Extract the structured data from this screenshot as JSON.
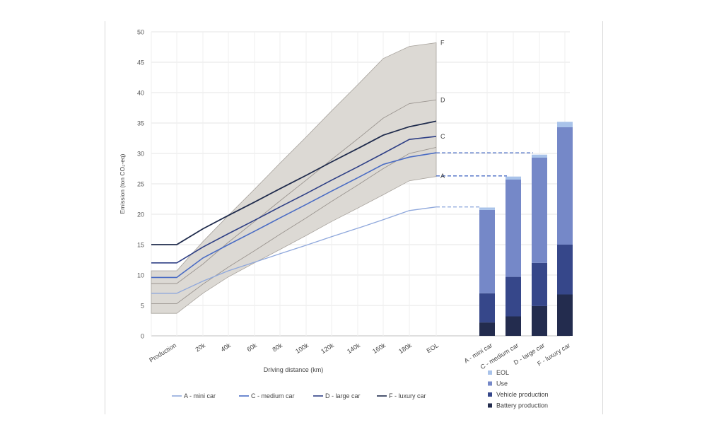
{
  "chart_data": [
    {
      "type": "line",
      "ylabel": "Emission (ton CO₂-eq)",
      "xlabel": "Driving distance (km)",
      "ylim": [
        0,
        50
      ],
      "yticks": [
        0,
        5,
        10,
        15,
        20,
        25,
        30,
        35,
        40,
        45,
        50
      ],
      "grid": true,
      "categories": [
        "Production",
        "",
        "20k",
        "40k",
        "60k",
        "80k",
        "100k",
        "120k",
        "140k",
        "160k",
        "180k",
        "EOL"
      ],
      "band": {
        "lower": [
          3.7,
          3.7,
          7.0,
          9.7,
          12.0,
          14.2,
          16.5,
          18.8,
          21.0,
          23.2,
          25.5,
          26.2
        ],
        "upper": [
          10.7,
          10.7,
          15.5,
          19.8,
          24.1,
          28.4,
          32.7,
          37.0,
          41.3,
          45.6,
          47.6,
          48.2
        ],
        "color": "#dcd9d4"
      },
      "series": [
        {
          "name": "A - mini car",
          "color": "#8fa8dc",
          "width": 1.3,
          "values": [
            7.0,
            7.0,
            9.0,
            10.7,
            12.1,
            13.5,
            14.9,
            16.3,
            17.7,
            19.1,
            20.6,
            21.2
          ]
        },
        {
          "name": "C - medium car",
          "color": "#4a6cc4",
          "width": 1.6,
          "values": [
            9.6,
            9.6,
            12.8,
            15.0,
            17.2,
            19.4,
            21.6,
            23.8,
            26.0,
            28.2,
            29.4,
            30.1
          ]
        },
        {
          "name": "D - large car",
          "color": "#2e3f85",
          "width": 1.6,
          "values": [
            12.0,
            12.0,
            14.6,
            16.8,
            19.0,
            21.2,
            23.4,
            25.6,
            27.8,
            30.0,
            32.3,
            32.8
          ]
        },
        {
          "name": "F - luxury car",
          "color": "#1f2b4c",
          "width": 1.8,
          "values": [
            15.0,
            15.0,
            17.6,
            19.8,
            22.0,
            24.2,
            26.4,
            28.6,
            30.8,
            33.0,
            34.4,
            35.3
          ]
        }
      ],
      "extra_lines": [
        {
          "color": "#9b9590",
          "values": [
            5.3,
            5.3,
            8.5,
            11.3,
            14.0,
            16.7,
            19.4,
            22.1,
            24.8,
            27.5,
            30.0,
            31.0
          ]
        },
        {
          "color": "#9b9590",
          "values": [
            8.6,
            8.6,
            11.8,
            15.4,
            18.8,
            22.2,
            25.6,
            29.0,
            32.4,
            35.8,
            38.2,
            38.8
          ]
        }
      ],
      "end_labels": [
        {
          "text": "F",
          "value": 48.2
        },
        {
          "text": "D",
          "value": 38.8
        },
        {
          "text": "C",
          "value": 32.8
        },
        {
          "text": "A",
          "value": 26.3
        }
      ],
      "dashed_links": [
        {
          "value": 30.1,
          "to_bar": 2
        },
        {
          "value": 26.3,
          "to_bar": 1
        },
        {
          "value": 21.2,
          "to_bar": 0
        }
      ],
      "legend_position": "bottom"
    },
    {
      "type": "bar",
      "stacked": true,
      "categories": [
        "A - mini car",
        "C - medium car",
        "D - large car",
        "F - luxury car"
      ],
      "series": [
        {
          "name": "Battery production",
          "color": "#232c4e",
          "values": [
            2.2,
            3.2,
            4.9,
            6.8
          ]
        },
        {
          "name": "Vehicle production",
          "color": "#36478a",
          "values": [
            4.8,
            6.5,
            7.1,
            8.2
          ]
        },
        {
          "name": "Use",
          "color": "#7588c8",
          "values": [
            13.7,
            16.0,
            17.3,
            19.3
          ]
        },
        {
          "name": "EOL",
          "color": "#a9c3ea",
          "values": [
            0.4,
            0.5,
            0.5,
            0.9
          ]
        }
      ],
      "legend_position": "bottom-right"
    }
  ]
}
